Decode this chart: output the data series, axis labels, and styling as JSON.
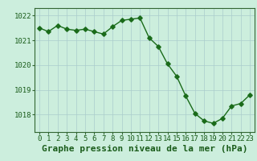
{
  "x": [
    0,
    1,
    2,
    3,
    4,
    5,
    6,
    7,
    8,
    9,
    10,
    11,
    12,
    13,
    14,
    15,
    16,
    17,
    18,
    19,
    20,
    21,
    22,
    23
  ],
  "y": [
    1021.5,
    1021.35,
    1021.6,
    1021.45,
    1021.4,
    1021.45,
    1021.35,
    1021.25,
    1021.55,
    1021.8,
    1021.85,
    1021.9,
    1021.1,
    1020.75,
    1020.05,
    1019.55,
    1018.75,
    1018.05,
    1017.75,
    1017.65,
    1017.85,
    1018.35,
    1018.45,
    1018.8
  ],
  "yticks": [
    1018,
    1019,
    1020,
    1021,
    1022
  ],
  "xticks": [
    0,
    1,
    2,
    3,
    4,
    5,
    6,
    7,
    8,
    9,
    10,
    11,
    12,
    13,
    14,
    15,
    16,
    17,
    18,
    19,
    20,
    21,
    22,
    23
  ],
  "ylim": [
    1017.3,
    1022.3
  ],
  "xlim": [
    -0.5,
    23.5
  ],
  "line_color": "#1a6b1a",
  "marker_color": "#1a6b1a",
  "bg_color": "#cceedd",
  "grid_color": "#aacccc",
  "axis_color": "#336633",
  "xlabel": "Graphe pression niveau de la mer (hPa)",
  "xlabel_color": "#1a5c1a",
  "tick_label_color": "#1a5c1a",
  "tick_fontsize": 6.5,
  "xlabel_fontsize": 8,
  "linewidth": 1.0,
  "markersize": 2.8
}
